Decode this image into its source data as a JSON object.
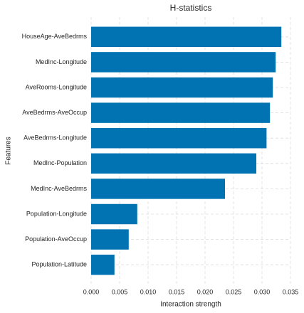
{
  "chart_data": {
    "type": "barh",
    "title": "H-statistics",
    "xlabel": "Interaction strength",
    "ylabel": "Features",
    "categories": [
      "HouseAge-AveBedrms",
      "MedInc-Longitude",
      "AveRooms-Longitude",
      "AveBedrms-AveOccup",
      "AveBedrms-Longitude",
      "MedInc-Population",
      "MedInc-AveBedrms",
      "Population-Longitude",
      "Population-AveOccup",
      "Population-Latitude"
    ],
    "values": [
      0.0334,
      0.0324,
      0.0319,
      0.0314,
      0.0308,
      0.029,
      0.0235,
      0.0081,
      0.0066,
      0.0041
    ],
    "color": "#0173b2",
    "xlim": [
      0,
      0.035
    ],
    "xticks": [
      {
        "value": 0,
        "label": "0.000"
      },
      {
        "value": 0.005,
        "label": "0.005"
      },
      {
        "value": 0.01,
        "label": "0.010"
      },
      {
        "value": 0.015,
        "label": "0.015"
      },
      {
        "value": 0.02,
        "label": "0.020"
      },
      {
        "value": 0.025,
        "label": "0.025"
      },
      {
        "value": 0.03,
        "label": "0.030"
      },
      {
        "value": 0.035,
        "label": "0.035"
      }
    ],
    "grid": true
  }
}
